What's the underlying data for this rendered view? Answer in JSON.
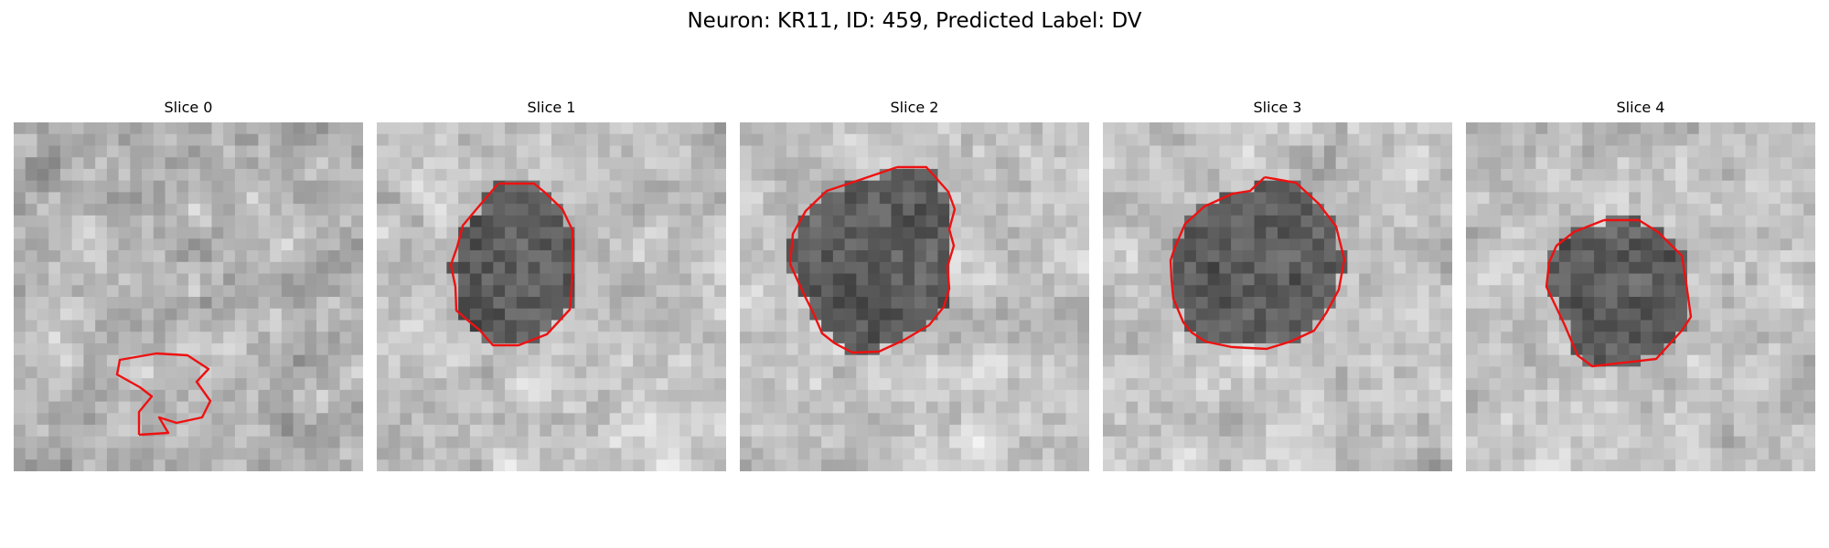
{
  "figure": {
    "title": "Neuron: KR11, ID: 459, Predicted Label: DV"
  },
  "panels": [
    {
      "title": "Slice 0",
      "seed": 11,
      "pattern": "mottled"
    },
    {
      "title": "Slice 1",
      "seed": 23,
      "pattern": "blob"
    },
    {
      "title": "Slice 2",
      "seed": 37,
      "pattern": "blob"
    },
    {
      "title": "Slice 3",
      "seed": 41,
      "pattern": "blob"
    },
    {
      "title": "Slice 4",
      "seed": 53,
      "pattern": "blob"
    }
  ],
  "style": {
    "contour_color": "#ee1111",
    "image_colormap": "grayscale"
  }
}
